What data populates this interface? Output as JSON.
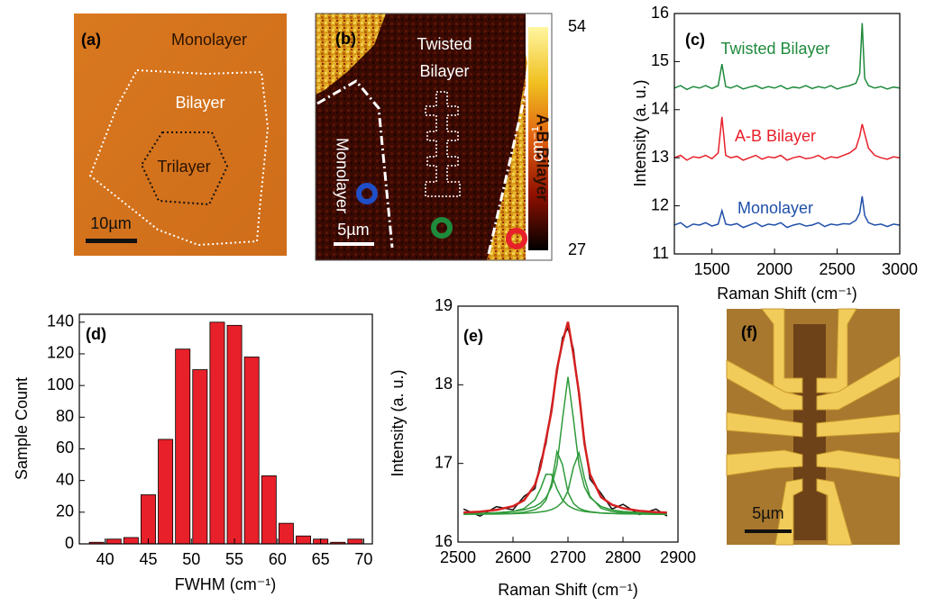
{
  "figure": {
    "a": {
      "label": "(a)",
      "monolayer": "Monolayer",
      "bilayer": "Bilayer",
      "trilayer": "Trilayer",
      "scale": "10µm"
    },
    "b": {
      "label": "(b)",
      "twisted": [
        "Twisted",
        "Bilayer"
      ],
      "monolayer": "Monolayer",
      "ab_bilayer": "A-B Bilayer",
      "scale": "5µm",
      "colorbar": {
        "max": 54,
        "min": 27,
        "unit": "cm⁻¹"
      }
    },
    "f": {
      "label": "(f)",
      "scale": "5µm"
    }
  },
  "chart_data": [
    {
      "type": "line",
      "label": "(c)",
      "xlabel": "Raman Shift (cm⁻¹)",
      "ylabel": "Intensity (a. u.)",
      "x": [
        1200,
        1250,
        1300,
        1350,
        1400,
        1450,
        1500,
        1550,
        1580,
        1610,
        1650,
        1700,
        1750,
        1800,
        1850,
        1900,
        1950,
        2000,
        2050,
        2100,
        2150,
        2200,
        2250,
        2300,
        2350,
        2400,
        2450,
        2500,
        2550,
        2600,
        2650,
        2680,
        2700,
        2720,
        2750,
        2800,
        2850,
        2900,
        2950,
        3000
      ],
      "series": [
        {
          "name": "Twisted Bilayer",
          "color": "#1e8a3c",
          "values": [
            14.45,
            14.5,
            14.42,
            14.48,
            14.45,
            14.5,
            14.44,
            14.5,
            14.95,
            14.48,
            14.45,
            14.5,
            14.43,
            14.47,
            14.5,
            14.44,
            14.48,
            14.45,
            14.5,
            14.43,
            14.47,
            14.45,
            14.5,
            14.44,
            14.48,
            14.45,
            14.5,
            14.43,
            14.47,
            14.5,
            14.55,
            14.75,
            15.8,
            14.65,
            14.5,
            14.45,
            14.48,
            14.43,
            14.47,
            14.45
          ]
        },
        {
          "name": "A-B Bilayer",
          "color": "#e8202a",
          "values": [
            13.0,
            13.05,
            12.95,
            13.02,
            13.0,
            13.05,
            12.98,
            13.1,
            13.85,
            13.05,
            13.0,
            13.03,
            12.95,
            13.0,
            13.05,
            12.97,
            13.02,
            13.0,
            13.05,
            12.95,
            13.0,
            13.03,
            12.98,
            13.0,
            13.05,
            12.97,
            13.02,
            13.0,
            13.05,
            13.1,
            13.2,
            13.45,
            13.7,
            13.5,
            13.2,
            13.05,
            13.0,
            12.97,
            13.02,
            13.0
          ]
        },
        {
          "name": "Monolayer",
          "color": "#1f4fa8",
          "values": [
            11.6,
            11.65,
            11.55,
            11.62,
            11.6,
            11.65,
            11.58,
            11.62,
            11.9,
            11.62,
            11.6,
            11.63,
            11.55,
            11.6,
            11.65,
            11.57,
            11.62,
            11.6,
            11.65,
            11.55,
            11.6,
            11.63,
            11.58,
            11.6,
            11.65,
            11.57,
            11.62,
            11.6,
            11.63,
            11.62,
            11.7,
            11.85,
            12.2,
            11.8,
            11.65,
            11.6,
            11.62,
            11.57,
            11.62,
            11.6
          ]
        }
      ],
      "xlim": [
        1200,
        3000
      ],
      "ylim": [
        11,
        16
      ],
      "xticks": [
        1500,
        2000,
        2500,
        3000
      ],
      "yticks": [
        11,
        12,
        13,
        14,
        15,
        16
      ]
    },
    {
      "type": "histogram",
      "label": "(d)",
      "xlabel": "FWHM (cm⁻¹)",
      "ylabel": "Sample Count",
      "color": "#e8202a",
      "bins": [
        38,
        40,
        42,
        44,
        46,
        48,
        50,
        52,
        54,
        56,
        58,
        60,
        62,
        64,
        66,
        68,
        70
      ],
      "values": [
        1,
        3,
        4,
        31,
        66,
        123,
        110,
        140,
        138,
        118,
        43,
        13,
        5,
        3,
        1,
        3
      ],
      "xlim": [
        37,
        71
      ],
      "ylim": [
        0,
        145
      ],
      "xticks": [
        40,
        45,
        50,
        55,
        60,
        65,
        70
      ],
      "yticks": [
        0,
        20,
        40,
        60,
        80,
        100,
        120,
        140
      ]
    },
    {
      "type": "line",
      "label": "(e)",
      "xlabel": "Raman Shift (cm⁻¹)",
      "ylabel": "Intensity (a. u.)",
      "x": [
        2510,
        2540,
        2570,
        2600,
        2620,
        2640,
        2650,
        2660,
        2670,
        2680,
        2690,
        2700,
        2710,
        2720,
        2730,
        2740,
        2760,
        2780,
        2800,
        2830,
        2860,
        2880
      ],
      "series": [
        {
          "color": "#111111",
          "values": [
            16.42,
            16.33,
            16.45,
            16.41,
            16.58,
            16.68,
            17.02,
            17.25,
            17.72,
            18.15,
            18.6,
            18.72,
            18.45,
            17.85,
            17.3,
            16.8,
            16.62,
            16.42,
            16.48,
            16.35,
            16.42,
            16.33
          ]
        },
        {
          "color": "#2f9a3a",
          "values": [
            16.357,
            16.361,
            16.369,
            16.389,
            16.426,
            16.538,
            16.675,
            16.861,
            16.861,
            16.675,
            16.538,
            16.465,
            16.426,
            16.403,
            16.389,
            16.38,
            16.369,
            16.363,
            16.36,
            16.357,
            16.355,
            16.354
          ]
        },
        {
          "color": "#2f9a3a",
          "values": [
            16.354,
            16.356,
            16.36,
            16.367,
            16.38,
            16.412,
            16.449,
            16.532,
            16.741,
            17.15,
            16.984,
            16.633,
            16.49,
            16.431,
            16.402,
            16.386,
            16.37,
            16.363,
            16.359,
            16.356,
            16.354,
            16.353
          ]
        },
        {
          "color": "#2f9a3a",
          "values": [
            16.361,
            16.365,
            16.373,
            16.389,
            16.41,
            16.453,
            16.495,
            16.566,
            16.7,
            16.98,
            17.56,
            18.1,
            17.56,
            16.98,
            16.7,
            16.566,
            16.453,
            16.41,
            16.389,
            16.373,
            16.365,
            16.362
          ]
        },
        {
          "color": "#2f9a3a",
          "values": [
            16.354,
            16.355,
            16.357,
            16.361,
            16.366,
            16.375,
            16.383,
            16.394,
            16.413,
            16.446,
            16.51,
            16.652,
            16.953,
            17.134,
            16.811,
            16.581,
            16.43,
            16.389,
            16.373,
            16.362,
            16.358,
            16.356
          ]
        },
        {
          "color": "#d42020",
          "values": [
            16.376,
            16.387,
            16.409,
            16.456,
            16.531,
            16.727,
            16.952,
            17.303,
            17.665,
            18.201,
            18.542,
            18.8,
            18.379,
            17.898,
            17.252,
            16.863,
            16.572,
            16.475,
            16.43,
            16.397,
            16.381,
            16.375
          ]
        }
      ],
      "xlim": [
        2500,
        2900
      ],
      "ylim": [
        16,
        19
      ],
      "xticks": [
        2500,
        2600,
        2700,
        2800,
        2900
      ],
      "yticks": [
        16,
        17,
        18,
        19
      ]
    }
  ]
}
